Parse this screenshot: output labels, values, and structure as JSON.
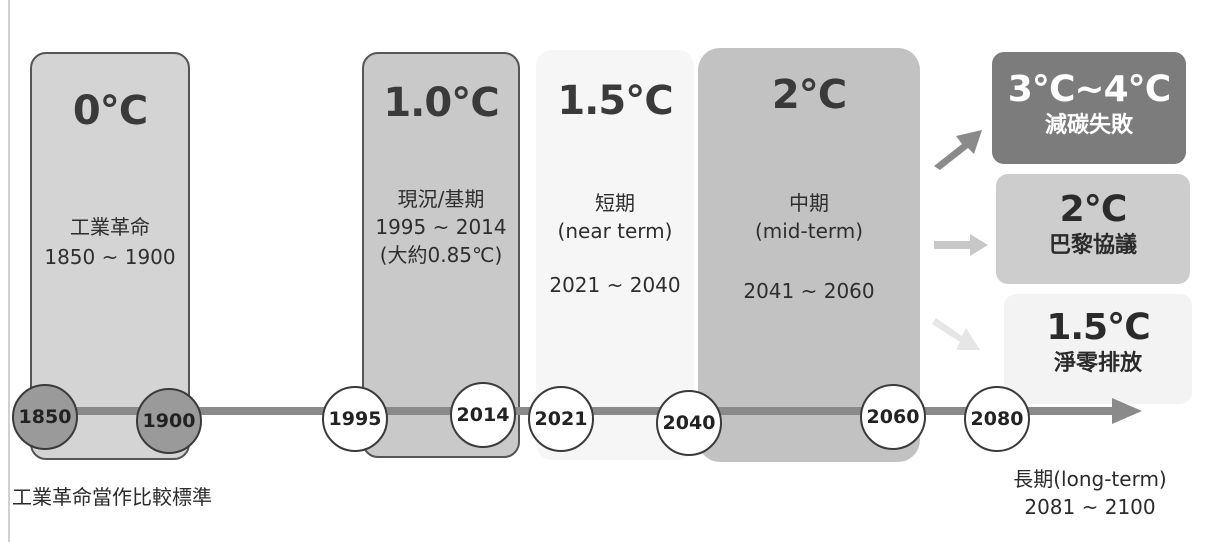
{
  "periods": {
    "preindustrial": {
      "temp": "0℃",
      "name": "工業革命",
      "range": "1850 ~ 1900"
    },
    "current": {
      "temp": "1.0℃",
      "name": "現況/基期",
      "range": "1995 ~ 2014",
      "note": "(大約0.85℃)"
    },
    "near_term": {
      "temp": "1.5℃",
      "name": "短期",
      "english": "(near term)",
      "range": "2021 ~ 2040"
    },
    "mid_term": {
      "temp": "2℃",
      "name": "中期",
      "english": "(mid-term)",
      "range": "2041 ~ 2060"
    }
  },
  "timeline": {
    "years": [
      "1850",
      "1900",
      "1995",
      "2014",
      "2021",
      "2040",
      "2060",
      "2080"
    ]
  },
  "outcomes": [
    {
      "temp": "3℃~4℃",
      "label": "減碳失敗"
    },
    {
      "temp": "2℃",
      "label": "巴黎協議"
    },
    {
      "temp": "1.5℃",
      "label": "淨零排放"
    }
  ],
  "captions": {
    "baseline_note": "工業革命當作比較標準",
    "long_term_label": "長期(long-term)",
    "long_term_range": "2081 ~ 2100"
  },
  "colors": {
    "preindustrial_panel": "#d4d4d4",
    "current_panel": "#c9c9c9",
    "near_term_panel": "#f6f6f6",
    "mid_term_panel": "#c2c2c2",
    "outcome_high": "#7c7c7c",
    "outcome_mid": "#cdcdcd",
    "outcome_low": "#f3f3f3",
    "axis": "#8a8a8a"
  }
}
